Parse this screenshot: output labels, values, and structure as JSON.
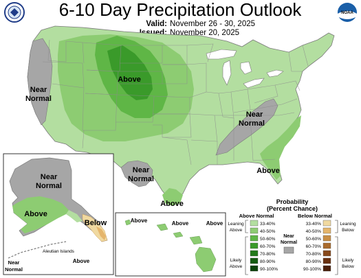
{
  "header": {
    "title": "6-10 Day Precipitation Outlook",
    "valid_label": "Valid:",
    "valid_value": "November 26 - 30, 2025",
    "issued_label": "Issued:",
    "issued_value": "November 20, 2025"
  },
  "logos": {
    "left": "commerce-seal-icon",
    "right": "noaa-logo-icon",
    "right_text": "NOAA"
  },
  "map_labels": {
    "above_north": "Above",
    "near_normal_west_1": "Near",
    "near_normal_west_2": "Normal",
    "near_normal_east_1": "Near",
    "near_normal_east_2": "Normal",
    "near_normal_sw_1": "Near",
    "near_normal_sw_2": "Normal",
    "above_southeast": "Above",
    "above_texas": "Above"
  },
  "alaska": {
    "near_normal_1": "Near",
    "near_normal_2": "Normal",
    "above": "Above",
    "below": "Below",
    "aleutian_islands": "Aleutian Islands",
    "aleutian_above": "Above",
    "aleutian_near_1": "Near",
    "aleutian_near_2": "Normal"
  },
  "hawaii": {
    "above_left": "Above",
    "above_mid": "Above",
    "above_right": "Above"
  },
  "legend": {
    "title_1": "Probability",
    "title_2": "(Percent Chance)",
    "above_header": "Above Normal",
    "below_header": "Below Normal",
    "above_bins": [
      "33-40%",
      "40-50%",
      "50-60%",
      "60-70%",
      "70-80%",
      "80-90%",
      "90-100%"
    ],
    "below_bins": [
      "33-40%",
      "40-50%",
      "50-60%",
      "60-70%",
      "70-80%",
      "80-90%",
      "90-100%"
    ],
    "above_colors": [
      "#b3dea0",
      "#8dcc72",
      "#5fb646",
      "#3a9a2a",
      "#237a1b",
      "#145c10",
      "#0a4208"
    ],
    "below_colors": [
      "#f0d9a0",
      "#e5b56b",
      "#c98f45",
      "#a96a2c",
      "#87491b",
      "#69300f",
      "#4a1f0a"
    ],
    "near_label_1": "Near",
    "near_label_2": "Normal",
    "near_color": "#a6a6a6",
    "leaning_above_1": "Leaning",
    "leaning_above_2": "Above",
    "likely_above_1": "Likely",
    "likely_above_2": "Above",
    "leaning_below_1": "Leaning",
    "leaning_below_2": "Below",
    "likely_below_1": "Likely",
    "likely_below_2": "Below"
  }
}
